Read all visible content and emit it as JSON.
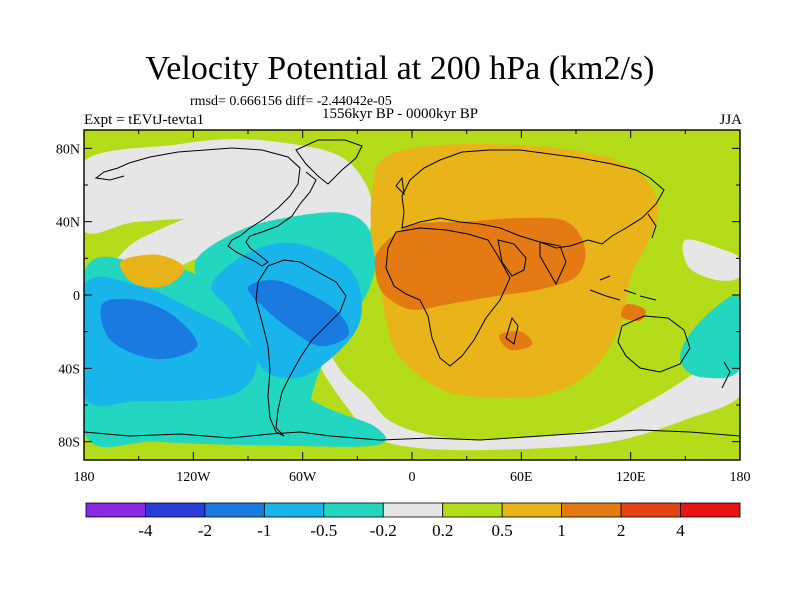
{
  "title": "Velocity Potential at 200 hPa (km2/s)",
  "stats_text": "rmsd= 0.666156 diff= -2.44042e-05",
  "experiment_label": "Expt = tEVtJ-tevta1",
  "period_label": "1556kyr BP - 0000kyr BP",
  "season_label": "JJA",
  "map": {
    "projection": "cylindrical equidistant",
    "lon_range": [
      -180,
      180
    ],
    "lat_range": [
      -90,
      90
    ],
    "x_ticks": [
      {
        "lon": -180,
        "label": "180"
      },
      {
        "lon": -120,
        "label": "120W"
      },
      {
        "lon": -60,
        "label": "60W"
      },
      {
        "lon": 0,
        "label": "0"
      },
      {
        "lon": 60,
        "label": "60E"
      },
      {
        "lon": 120,
        "label": "120E"
      },
      {
        "lon": 180,
        "label": "180"
      }
    ],
    "y_ticks": [
      {
        "lat": 80,
        "label": "80N"
      },
      {
        "lat": 40,
        "label": "40N"
      },
      {
        "lat": 0,
        "label": "0"
      },
      {
        "lat": -40,
        "label": "40S"
      },
      {
        "lat": -80,
        "label": "80S"
      }
    ],
    "background_level": "0.2 to 0.5",
    "regions": [
      {
        "name": "neutral-band-north",
        "level": "-0.2 to 0.2",
        "points": [
          [
            -180,
            73
          ],
          [
            -130,
            82
          ],
          [
            -100,
            85
          ],
          [
            -70,
            83
          ],
          [
            -40,
            76
          ],
          [
            -25,
            60
          ],
          [
            -22,
            42
          ],
          [
            -28,
            20
          ],
          [
            -35,
            5
          ],
          [
            -48,
            -20
          ],
          [
            -40,
            -40
          ],
          [
            -25,
            -55
          ],
          [
            -10,
            -70
          ],
          [
            20,
            -78
          ],
          [
            60,
            -78
          ],
          [
            100,
            -73
          ],
          [
            130,
            -58
          ],
          [
            150,
            -46
          ],
          [
            165,
            -36
          ],
          [
            180,
            -30
          ],
          [
            180,
            -55
          ],
          [
            150,
            -68
          ],
          [
            110,
            -80
          ],
          [
            60,
            -84
          ],
          [
            10,
            -84
          ],
          [
            -20,
            -78
          ],
          [
            -35,
            -62
          ],
          [
            -50,
            -40
          ],
          [
            -58,
            -20
          ],
          [
            -60,
            -5
          ],
          [
            -70,
            20
          ],
          [
            -100,
            40
          ],
          [
            -150,
            40
          ],
          [
            -180,
            35
          ]
        ]
      },
      {
        "name": "neutral-band-west",
        "level": "-0.2 to 0.2",
        "points": [
          [
            -180,
            -10
          ],
          [
            -160,
            22
          ],
          [
            -140,
            35
          ],
          [
            -110,
            45
          ],
          [
            -80,
            40
          ],
          [
            -60,
            22
          ],
          [
            -80,
            15
          ],
          [
            -110,
            22
          ],
          [
            -140,
            10
          ],
          [
            -180,
            0
          ]
        ]
      },
      {
        "name": "neutral-patch-east",
        "level": "-0.2 to 0.2",
        "points": [
          [
            150,
            30
          ],
          [
            170,
            25
          ],
          [
            180,
            20
          ],
          [
            180,
            10
          ],
          [
            168,
            8
          ],
          [
            152,
            15
          ]
        ]
      },
      {
        "name": "weak-negative-pacific",
        "level": "-0.5 to -0.2",
        "points": [
          [
            -180,
            12
          ],
          [
            -150,
            18
          ],
          [
            -120,
            12
          ],
          [
            -100,
            -5
          ],
          [
            -88,
            -38
          ],
          [
            -50,
            -60
          ],
          [
            -20,
            -72
          ],
          [
            -20,
            -82
          ],
          [
            -80,
            -82
          ],
          [
            -140,
            -80
          ],
          [
            -180,
            -75
          ]
        ]
      },
      {
        "name": "weak-negative-atlantic",
        "level": "-0.5 to -0.2",
        "points": [
          [
            -118,
            20
          ],
          [
            -95,
            35
          ],
          [
            -70,
            42
          ],
          [
            -40,
            45
          ],
          [
            -25,
            38
          ],
          [
            -20,
            20
          ],
          [
            -25,
            0
          ],
          [
            -40,
            -20
          ],
          [
            -52,
            -45
          ],
          [
            -60,
            -72
          ],
          [
            -70,
            -78
          ],
          [
            -95,
            -70
          ],
          [
            -100,
            -40
          ],
          [
            -100,
            -10
          ],
          [
            -115,
            5
          ]
        ]
      },
      {
        "name": "weak-negative-east",
        "level": "-0.5 to -0.2",
        "points": [
          [
            150,
            -25
          ],
          [
            165,
            -8
          ],
          [
            180,
            -2
          ],
          [
            180,
            -40
          ],
          [
            160,
            -45
          ],
          [
            148,
            -38
          ]
        ]
      },
      {
        "name": "moderate-negative-pacific",
        "level": "-1 to -0.5",
        "points": [
          [
            -180,
            5
          ],
          [
            -150,
            5
          ],
          [
            -120,
            -8
          ],
          [
            -95,
            -22
          ],
          [
            -85,
            -38
          ],
          [
            -100,
            -55
          ],
          [
            -150,
            -58
          ],
          [
            -180,
            -55
          ]
        ]
      },
      {
        "name": "moderate-negative-atlantic",
        "level": "-1 to -0.5",
        "points": [
          [
            -110,
            5
          ],
          [
            -95,
            20
          ],
          [
            -75,
            28
          ],
          [
            -55,
            26
          ],
          [
            -35,
            15
          ],
          [
            -28,
            0
          ],
          [
            -30,
            -18
          ],
          [
            -45,
            -35
          ],
          [
            -62,
            -45
          ],
          [
            -80,
            -42
          ],
          [
            -90,
            -25
          ],
          [
            -100,
            -8
          ]
        ]
      },
      {
        "name": "strong-negative-pacific",
        "level": "-2 to -1",
        "points": [
          [
            -170,
            -5
          ],
          [
            -150,
            -3
          ],
          [
            -130,
            -12
          ],
          [
            -118,
            -28
          ],
          [
            -140,
            -35
          ],
          [
            -165,
            -25
          ]
        ]
      },
      {
        "name": "strong-negative-atlantic",
        "level": "-2 to -1",
        "points": [
          [
            -90,
            4
          ],
          [
            -75,
            8
          ],
          [
            -55,
            0
          ],
          [
            -40,
            -10
          ],
          [
            -35,
            -22
          ],
          [
            -50,
            -28
          ],
          [
            -65,
            -20
          ],
          [
            -80,
            -8
          ]
        ]
      },
      {
        "name": "weak-positive-eurasia",
        "level": "0.5 to 1",
        "points": [
          [
            -15,
            75
          ],
          [
            20,
            82
          ],
          [
            80,
            80
          ],
          [
            120,
            70
          ],
          [
            135,
            50
          ],
          [
            130,
            30
          ],
          [
            120,
            10
          ],
          [
            115,
            -15
          ],
          [
            98,
            -42
          ],
          [
            70,
            -55
          ],
          [
            30,
            -55
          ],
          [
            10,
            -48
          ],
          [
            -8,
            -32
          ],
          [
            -15,
            -10
          ],
          [
            -18,
            10
          ],
          [
            -22,
            30
          ],
          [
            -22,
            55
          ]
        ]
      },
      {
        "name": "weak-positive-pacific",
        "level": "0.5 to 1",
        "points": [
          [
            -160,
            18
          ],
          [
            -140,
            22
          ],
          [
            -125,
            15
          ],
          [
            -135,
            5
          ],
          [
            -152,
            6
          ]
        ]
      },
      {
        "name": "moderate-positive-africa-asia",
        "level": "1 to 2",
        "points": [
          [
            -18,
            25
          ],
          [
            0,
            38
          ],
          [
            30,
            40
          ],
          [
            60,
            42
          ],
          [
            85,
            40
          ],
          [
            95,
            25
          ],
          [
            90,
            10
          ],
          [
            70,
            3
          ],
          [
            50,
            0
          ],
          [
            20,
            -5
          ],
          [
            0,
            -8
          ],
          [
            -15,
            0
          ],
          [
            -20,
            12
          ]
        ]
      },
      {
        "name": "moderate-positive-south",
        "level": "1 to 2",
        "points": [
          [
            48,
            -22
          ],
          [
            60,
            -20
          ],
          [
            66,
            -27
          ],
          [
            54,
            -30
          ]
        ]
      },
      {
        "name": "moderate-positive-indonesia",
        "level": "1 to 2",
        "points": [
          [
            118,
            -5
          ],
          [
            128,
            -8
          ],
          [
            125,
            -14
          ],
          [
            115,
            -12
          ]
        ]
      }
    ]
  },
  "colorbar": {
    "levels": [
      "-4",
      "-2",
      "-1",
      "-0.5",
      "-0.2",
      "0.2",
      "0.5",
      "1",
      "2",
      "4"
    ],
    "colors": [
      "#8a28e6",
      "#2a3cd8",
      "#1a7ae0",
      "#18b4ea",
      "#22d6c0",
      "#e6e6e6",
      "#b4dc1a",
      "#e8b41a",
      "#e47a14",
      "#e44414",
      "#e81414"
    ]
  },
  "level_colors": {
    "-2 to -1": "#1a7ae0",
    "-1 to -0.5": "#18b4ea",
    "-0.5 to -0.2": "#22d6c0",
    "-0.2 to 0.2": "#e6e6e6",
    "0.2 to 0.5": "#b4dc1a",
    "0.5 to 1": "#e8b41a",
    "1 to 2": "#e47a14"
  }
}
